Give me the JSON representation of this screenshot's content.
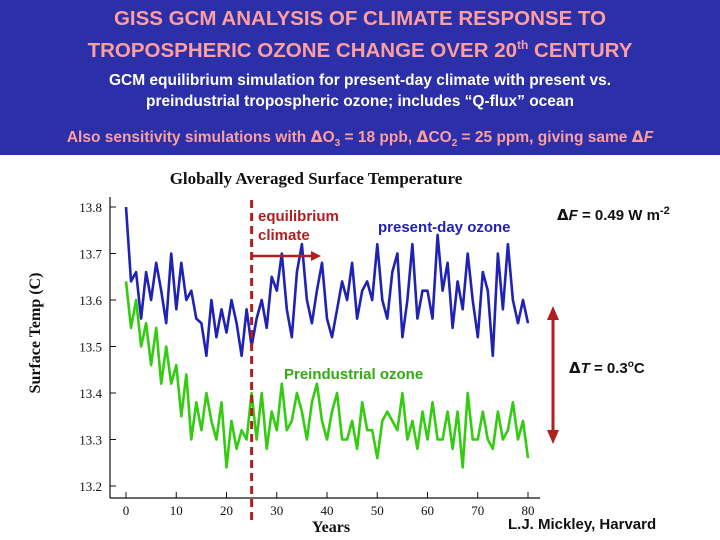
{
  "slide": {
    "title_line1": "GISS GCM ANALYSIS OF CLIMATE RESPONSE TO",
    "title_line2_pre": "TROPOSPHERIC OZONE CHANGE OVER 20",
    "title_line2_sup": "th",
    "title_line2_post": " CENTURY",
    "subtitle_line1": "GCM equilibrium simulation for present-day climate with present vs.",
    "subtitle_line2": "preindustrial tropospheric ozone; includes “Q-flux” ocean",
    "sens_a": "Also sensitivity simulations with ",
    "sens_delta1": "Δ",
    "sens_b": "O",
    "sens_sub1": "3",
    "sens_c": " = 18 ppb, ",
    "sens_delta2": "Δ",
    "sens_d": "CO",
    "sens_sub2": "2",
    "sens_e": " = 25 ppm, giving same ",
    "sens_delta3": "Δ",
    "sens_f": "F"
  },
  "annotations": {
    "equilibrium_line1": "equilibrium",
    "equilibrium_line2": "climate",
    "present_day_label": "present-day ozone",
    "preindustrial_label": "Preindustrial ozone",
    "delta_f_symbol": "Δ",
    "delta_f_var": "F",
    "delta_f_value": " = 0.49 W m",
    "delta_f_exp": "-2",
    "delta_t_symbol": "Δ",
    "delta_t_var": "T",
    "delta_t_value": " = 0.3",
    "delta_t_deg": "o",
    "delta_t_unit": "C",
    "credit": "L.J. Mickley, Harvard"
  },
  "colors": {
    "background": "#2B2FA8",
    "title": "#FF9E9E",
    "present_series": "#1F22B4",
    "preindustrial_series": "#33CC11",
    "annotation_red": "#B01E1E"
  },
  "chart_data": {
    "type": "line",
    "title": "Globally Averaged Surface Temperature",
    "xlabel": "Years",
    "ylabel": "Surface Temp (C)",
    "xlim": [
      0,
      80
    ],
    "ylim": [
      13.2,
      13.8
    ],
    "x_ticks": [
      "0",
      "10",
      "20",
      "30",
      "40",
      "50",
      "60",
      "70",
      "80"
    ],
    "y_ticks": [
      "13.8",
      "13.7",
      "13.6",
      "13.5",
      "13.4",
      "13.3",
      "13.2"
    ],
    "equilibrium_marker_year": 25,
    "series": [
      {
        "name": "present-day ozone",
        "x": [
          0,
          1,
          2,
          3,
          4,
          5,
          6,
          7,
          8,
          9,
          10,
          11,
          12,
          13,
          14,
          15,
          16,
          17,
          18,
          19,
          20,
          21,
          22,
          23,
          24,
          25,
          26,
          27,
          28,
          29,
          30,
          31,
          32,
          33,
          34,
          35,
          36,
          37,
          38,
          39,
          40,
          41,
          42,
          43,
          44,
          45,
          46,
          47,
          48,
          49,
          50,
          51,
          52,
          53,
          54,
          55,
          56,
          57,
          58,
          59,
          60,
          61,
          62,
          63,
          64,
          65,
          66,
          67,
          68,
          69,
          70,
          71,
          72,
          73,
          74,
          75,
          76,
          77,
          78,
          79,
          80
        ],
        "values": [
          13.8,
          13.64,
          13.66,
          13.56,
          13.66,
          13.6,
          13.68,
          13.62,
          13.55,
          13.7,
          13.58,
          13.68,
          13.6,
          13.62,
          13.56,
          13.55,
          13.48,
          13.6,
          13.52,
          13.58,
          13.53,
          13.6,
          13.55,
          13.48,
          13.58,
          13.5,
          13.56,
          13.6,
          13.54,
          13.65,
          13.62,
          13.7,
          13.58,
          13.52,
          13.66,
          13.72,
          13.6,
          13.55,
          13.62,
          13.68,
          13.56,
          13.52,
          13.58,
          13.64,
          13.6,
          13.68,
          13.56,
          13.62,
          13.64,
          13.6,
          13.72,
          13.6,
          13.56,
          13.66,
          13.7,
          13.52,
          13.6,
          13.72,
          13.56,
          13.62,
          13.62,
          13.56,
          13.74,
          13.62,
          13.68,
          13.54,
          13.64,
          13.58,
          13.7,
          13.6,
          13.52,
          13.66,
          13.62,
          13.48,
          13.7,
          13.58,
          13.72,
          13.6,
          13.55,
          13.6,
          13.55
        ]
      },
      {
        "name": "Preindustrial ozone",
        "x": [
          0,
          1,
          2,
          3,
          4,
          5,
          6,
          7,
          8,
          9,
          10,
          11,
          12,
          13,
          14,
          15,
          16,
          17,
          18,
          19,
          20,
          21,
          22,
          23,
          24,
          25,
          26,
          27,
          28,
          29,
          30,
          31,
          32,
          33,
          34,
          35,
          36,
          37,
          38,
          39,
          40,
          41,
          42,
          43,
          44,
          45,
          46,
          47,
          48,
          49,
          50,
          51,
          52,
          53,
          54,
          55,
          56,
          57,
          58,
          59,
          60,
          61,
          62,
          63,
          64,
          65,
          66,
          67,
          68,
          69,
          70,
          71,
          72,
          73,
          74,
          75,
          76,
          77,
          78,
          79,
          80
        ],
        "values": [
          13.64,
          13.54,
          13.6,
          13.5,
          13.55,
          13.46,
          13.54,
          13.42,
          13.5,
          13.42,
          13.46,
          13.35,
          13.44,
          13.3,
          13.38,
          13.32,
          13.4,
          13.34,
          13.3,
          13.38,
          13.24,
          13.34,
          13.28,
          13.32,
          13.3,
          13.4,
          13.3,
          13.4,
          13.28,
          13.36,
          13.32,
          13.42,
          13.32,
          13.34,
          13.4,
          13.36,
          13.3,
          13.38,
          13.42,
          13.34,
          13.3,
          13.36,
          13.4,
          13.3,
          13.3,
          13.34,
          13.28,
          13.38,
          13.32,
          13.32,
          13.26,
          13.34,
          13.36,
          13.34,
          13.32,
          13.4,
          13.3,
          13.34,
          13.28,
          13.36,
          13.3,
          13.38,
          13.3,
          13.3,
          13.36,
          13.28,
          13.36,
          13.24,
          13.4,
          13.3,
          13.3,
          13.36,
          13.3,
          13.28,
          13.36,
          13.3,
          13.32,
          13.38,
          13.3,
          13.34,
          13.26
        ]
      }
    ]
  }
}
